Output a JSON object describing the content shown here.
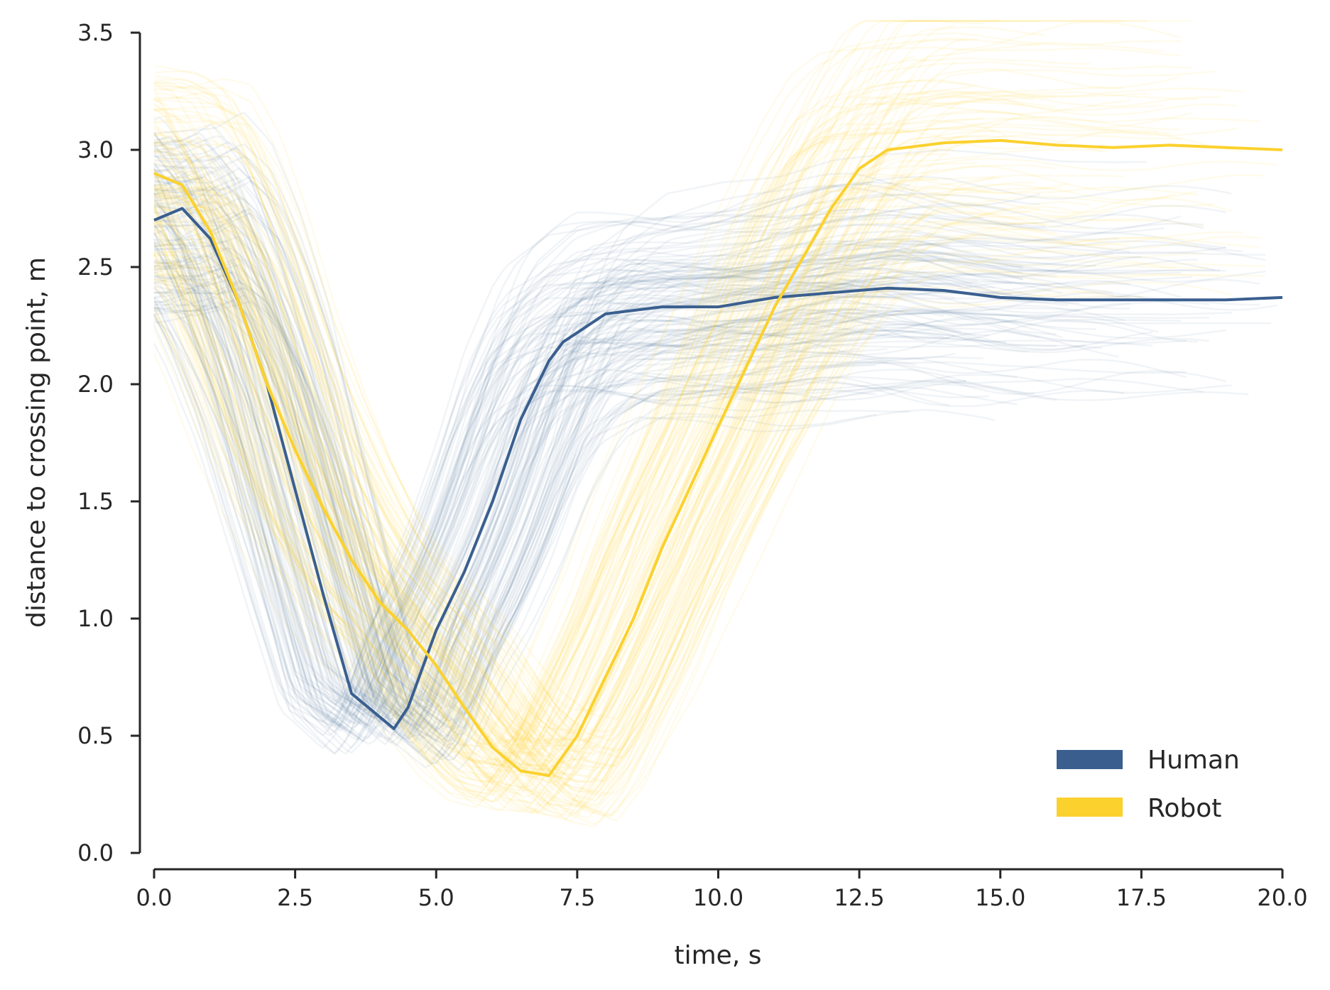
{
  "chart_data": {
    "type": "line",
    "xlabel": "time, s",
    "ylabel": "distance to crossing point, m",
    "xlim": [
      0.0,
      20.0
    ],
    "ylim": [
      0.0,
      3.5
    ],
    "xticks": [
      "0.0",
      "2.5",
      "5.0",
      "7.5",
      "10.0",
      "12.5",
      "15.0",
      "17.5",
      "20.0"
    ],
    "yticks": [
      "0.0",
      "0.5",
      "1.0",
      "1.5",
      "2.0",
      "2.5",
      "3.0",
      "3.5"
    ],
    "grid": false,
    "legend_position": "lower right",
    "series": [
      {
        "name": "Human",
        "color": "#3a5f8f",
        "x": [
          0,
          0.5,
          1,
          1.5,
          2,
          2.5,
          3,
          3.5,
          4,
          4.25,
          4.5,
          5,
          5.5,
          6,
          6.5,
          7,
          7.25,
          7.5,
          8,
          9,
          10,
          11,
          12,
          13,
          14,
          15,
          16,
          17,
          18,
          19,
          20
        ],
        "values": [
          2.7,
          2.75,
          2.62,
          2.35,
          2.0,
          1.55,
          1.1,
          0.68,
          0.58,
          0.53,
          0.62,
          0.95,
          1.2,
          1.5,
          1.85,
          2.1,
          2.18,
          2.22,
          2.3,
          2.33,
          2.33,
          2.37,
          2.39,
          2.41,
          2.4,
          2.37,
          2.36,
          2.36,
          2.36,
          2.36,
          2.37
        ]
      },
      {
        "name": "Robot",
        "color": "#fbd12d",
        "x": [
          0,
          0.5,
          1,
          1.5,
          2,
          2.5,
          3,
          3.5,
          4,
          4.5,
          5,
          5.5,
          6,
          6.5,
          7,
          7.5,
          8,
          8.5,
          9,
          10,
          11,
          12,
          12.5,
          13,
          14,
          15,
          16,
          17,
          18,
          19,
          20
        ],
        "values": [
          2.9,
          2.85,
          2.65,
          2.35,
          2.0,
          1.72,
          1.47,
          1.25,
          1.07,
          0.95,
          0.8,
          0.62,
          0.45,
          0.35,
          0.33,
          0.5,
          0.75,
          1.0,
          1.3,
          1.82,
          2.33,
          2.75,
          2.92,
          3.0,
          3.03,
          3.04,
          3.02,
          3.01,
          3.02,
          3.01,
          3.0
        ]
      }
    ]
  }
}
